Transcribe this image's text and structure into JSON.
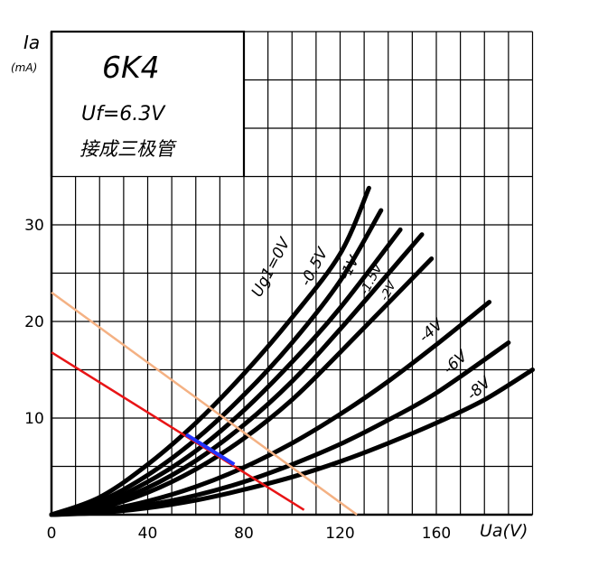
{
  "chart_data": {
    "type": "line",
    "title": "6K4",
    "subtitle_lines": [
      "Uf=6.3V",
      "接成三极管"
    ],
    "ylabel": "Ia",
    "yunit": "(mA)",
    "xlabel": "Ua(V)",
    "xlim": [
      0,
      200
    ],
    "ylim": [
      0,
      50
    ],
    "xticks": [
      0,
      40,
      80,
      120,
      160
    ],
    "yticks": [
      10,
      20,
      30
    ],
    "grid": true,
    "series": [
      {
        "name": "Ug1=0V",
        "x": [
          0,
          20,
          40,
          60,
          80,
          100,
          120,
          132
        ],
        "y": [
          0,
          1.8,
          5.2,
          9.5,
          14.6,
          20.4,
          27.0,
          33.8
        ]
      },
      {
        "name": "-0.5V",
        "x": [
          0,
          20,
          40,
          60,
          80,
          100,
          120,
          137
        ],
        "y": [
          0,
          1.4,
          4.1,
          7.8,
          12.4,
          17.8,
          24.2,
          31.5
        ]
      },
      {
        "name": "-1V",
        "x": [
          0,
          20,
          40,
          60,
          80,
          100,
          120,
          145
        ],
        "y": [
          0,
          1.1,
          3.4,
          6.6,
          10.8,
          15.8,
          21.4,
          29.5
        ]
      },
      {
        "name": "-1.5V",
        "x": [
          0,
          20,
          40,
          60,
          80,
          100,
          120,
          154
        ],
        "y": [
          0,
          0.9,
          2.8,
          5.6,
          9.3,
          13.8,
          19.2,
          29.0
        ]
      },
      {
        "name": "-2V",
        "x": [
          0,
          20,
          40,
          60,
          80,
          100,
          120,
          158
        ],
        "y": [
          0,
          0.7,
          2.3,
          4.7,
          7.9,
          11.9,
          16.8,
          26.5
        ]
      },
      {
        "name": "-4V",
        "x": [
          0,
          20,
          40,
          60,
          80,
          100,
          120,
          140,
          160,
          182
        ],
        "y": [
          0,
          0.4,
          1.4,
          2.9,
          4.9,
          7.4,
          10.4,
          13.8,
          17.6,
          22.0
        ]
      },
      {
        "name": "-6V",
        "x": [
          0,
          20,
          40,
          60,
          80,
          100,
          120,
          140,
          160,
          190
        ],
        "y": [
          0,
          0.3,
          1.0,
          2.0,
          3.4,
          5.2,
          7.3,
          9.8,
          12.6,
          17.8
        ]
      },
      {
        "name": "-8V",
        "x": [
          0,
          20,
          40,
          60,
          80,
          100,
          120,
          140,
          160,
          180,
          200
        ],
        "y": [
          0,
          0.2,
          0.7,
          1.5,
          2.6,
          3.9,
          5.5,
          7.4,
          9.5,
          11.9,
          15.0
        ]
      }
    ],
    "load_lines": [
      {
        "color": "#e81416",
        "x": [
          0,
          105
        ],
        "y": [
          16.8,
          0.5
        ]
      },
      {
        "color": "#f4b183",
        "x": [
          0,
          127
        ],
        "y": [
          23.0,
          0
        ]
      }
    ],
    "highlight": {
      "color": "#2233ff",
      "x": [
        56,
        76
      ],
      "y": [
        8.3,
        5.2
      ]
    },
    "colors": {
      "curve": "#000000",
      "grid": "#000000"
    }
  }
}
